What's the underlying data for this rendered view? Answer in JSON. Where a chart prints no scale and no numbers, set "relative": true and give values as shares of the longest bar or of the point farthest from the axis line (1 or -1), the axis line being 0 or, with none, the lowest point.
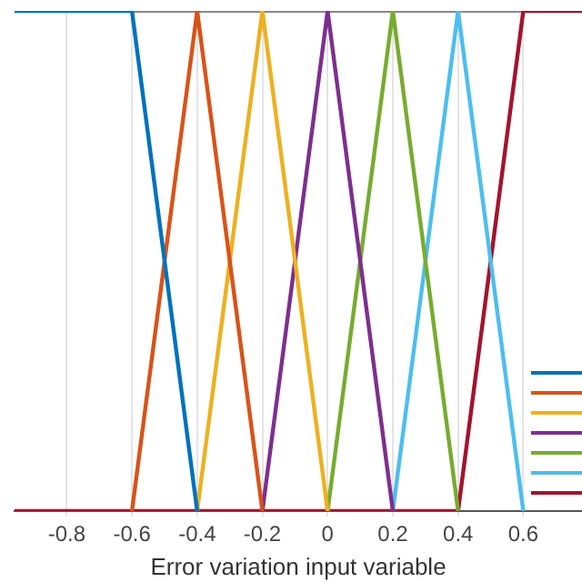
{
  "chart_data": {
    "type": "line",
    "relative": true,
    "xlabel": "Error variation input variable",
    "xlim": [
      -0.96,
      0.78
    ],
    "xticks": [
      -0.8,
      -0.6,
      -0.4,
      -0.2,
      0,
      0.2,
      0.4,
      0.6
    ],
    "grid": "x",
    "marker": "none",
    "line_style": "solid",
    "series": [
      {
        "color": "#0072bd",
        "x": [
          -0.96,
          -0.6,
          -0.4
        ],
        "values": [
          1,
          1,
          0
        ]
      },
      {
        "color": "#d95319",
        "x": [
          -0.6,
          -0.4,
          -0.2
        ],
        "values": [
          0,
          1,
          0
        ]
      },
      {
        "color": "#edb120",
        "x": [
          -0.4,
          -0.2,
          0
        ],
        "values": [
          0,
          1,
          0
        ]
      },
      {
        "color": "#7e2f8e",
        "x": [
          -0.2,
          0,
          0.2
        ],
        "values": [
          0,
          1,
          0
        ]
      },
      {
        "color": "#77ac30",
        "x": [
          0,
          0.2,
          0.4
        ],
        "values": [
          0,
          1,
          0
        ]
      },
      {
        "color": "#4dbeee",
        "x": [
          0.2,
          0.4,
          0.6
        ],
        "values": [
          0,
          1,
          0
        ]
      },
      {
        "color": "#a2142f",
        "x": [
          -0.96,
          0.4,
          0.6,
          0.78
        ],
        "values": [
          0,
          0,
          1,
          1
        ]
      }
    ]
  }
}
